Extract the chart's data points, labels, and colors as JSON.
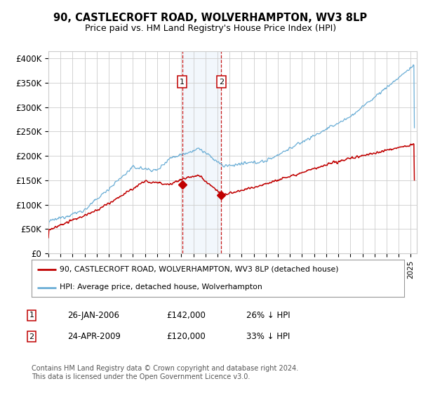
{
  "title1": "90, CASTLECROFT ROAD, WOLVERHAMPTON, WV3 8LP",
  "title2": "Price paid vs. HM Land Registry's House Price Index (HPI)",
  "ylabel_ticks": [
    "£0",
    "£50K",
    "£100K",
    "£150K",
    "£200K",
    "£250K",
    "£300K",
    "£350K",
    "£400K"
  ],
  "ytick_vals": [
    0,
    50000,
    100000,
    150000,
    200000,
    250000,
    300000,
    350000,
    400000
  ],
  "ylim": [
    0,
    415000
  ],
  "xlim_start": 1995.0,
  "xlim_end": 2025.5,
  "hpi_color": "#6baed6",
  "price_color": "#c00000",
  "sale1_date": 2006.07,
  "sale1_price": 142000,
  "sale2_date": 2009.31,
  "sale2_price": 120000,
  "legend_line1": "90, CASTLECROFT ROAD, WOLVERHAMPTON, WV3 8LP (detached house)",
  "legend_line2": "HPI: Average price, detached house, Wolverhampton",
  "table_row1": [
    "1",
    "26-JAN-2006",
    "£142,000",
    "26% ↓ HPI"
  ],
  "table_row2": [
    "2",
    "24-APR-2009",
    "£120,000",
    "33% ↓ HPI"
  ],
  "footnote": "Contains HM Land Registry data © Crown copyright and database right 2024.\nThis data is licensed under the Open Government Licence v3.0.",
  "bg_color": "#ffffff",
  "grid_color": "#cccccc",
  "shade_color": "#dbeaf7"
}
